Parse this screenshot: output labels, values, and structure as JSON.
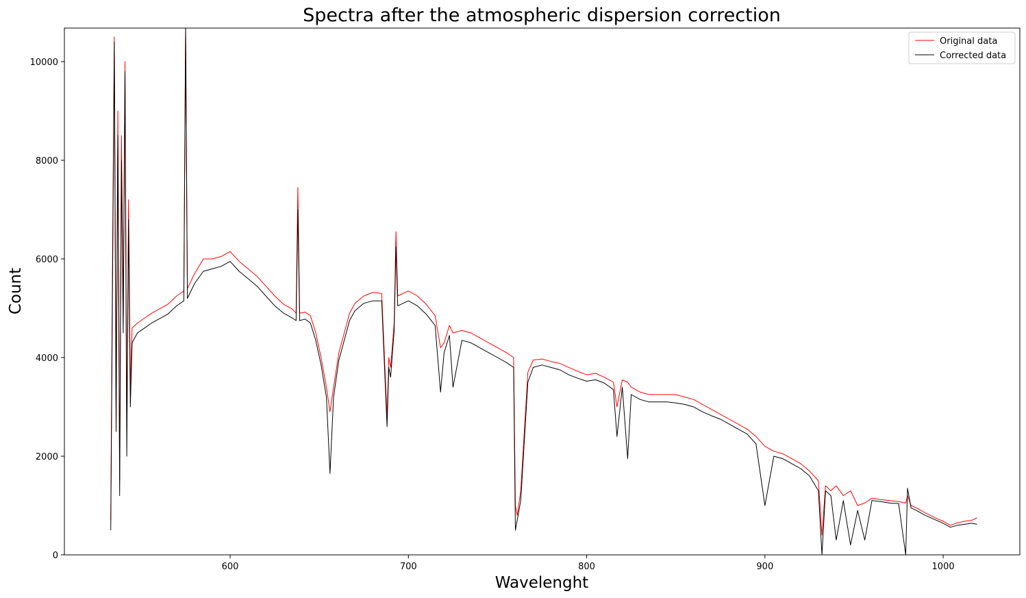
{
  "chart_data": {
    "type": "line",
    "title": "Spectra after the atmospheric dispersion correction",
    "xlabel": "Wavelenght",
    "ylabel": "Count",
    "xlim": [
      507,
      1043
    ],
    "ylim": [
      0,
      10680
    ],
    "xticks": [
      600,
      700,
      800,
      900,
      1000
    ],
    "yticks": [
      0,
      2000,
      4000,
      6000,
      8000,
      10000
    ],
    "grid": false,
    "legend_position": "top-right",
    "series": [
      {
        "name": "Original data",
        "color": "#ff0000",
        "points": [
          [
            533,
            700
          ],
          [
            534,
            6000
          ],
          [
            535,
            10500
          ],
          [
            536,
            3000
          ],
          [
            537,
            9000
          ],
          [
            538,
            1500
          ],
          [
            539,
            8500
          ],
          [
            540,
            5000
          ],
          [
            541,
            10000
          ],
          [
            542,
            2500
          ],
          [
            543,
            7200
          ],
          [
            544,
            3400
          ],
          [
            545,
            4600
          ],
          [
            548,
            4700
          ],
          [
            552,
            4800
          ],
          [
            556,
            4900
          ],
          [
            560,
            4980
          ],
          [
            565,
            5080
          ],
          [
            570,
            5250
          ],
          [
            574,
            5350
          ],
          [
            575,
            10700
          ],
          [
            576,
            5400
          ],
          [
            580,
            5700
          ],
          [
            585,
            6000
          ],
          [
            590,
            6000
          ],
          [
            595,
            6050
          ],
          [
            600,
            6150
          ],
          [
            605,
            5950
          ],
          [
            610,
            5800
          ],
          [
            615,
            5650
          ],
          [
            620,
            5450
          ],
          [
            625,
            5250
          ],
          [
            630,
            5080
          ],
          [
            635,
            4980
          ],
          [
            637,
            4900
          ],
          [
            638,
            7450
          ],
          [
            639,
            4900
          ],
          [
            642,
            4920
          ],
          [
            645,
            4850
          ],
          [
            648,
            4500
          ],
          [
            651,
            4000
          ],
          [
            654,
            3400
          ],
          [
            656,
            2900
          ],
          [
            658,
            3400
          ],
          [
            661,
            4100
          ],
          [
            664,
            4500
          ],
          [
            667,
            4900
          ],
          [
            670,
            5100
          ],
          [
            675,
            5250
          ],
          [
            680,
            5320
          ],
          [
            685,
            5300
          ],
          [
            688,
            2800
          ],
          [
            689,
            4000
          ],
          [
            690,
            3800
          ],
          [
            692,
            4700
          ],
          [
            693,
            6550
          ],
          [
            694,
            5250
          ],
          [
            700,
            5350
          ],
          [
            705,
            5250
          ],
          [
            710,
            5080
          ],
          [
            715,
            4850
          ],
          [
            718,
            4200
          ],
          [
            720,
            4300
          ],
          [
            723,
            4650
          ],
          [
            725,
            4500
          ],
          [
            730,
            4550
          ],
          [
            735,
            4500
          ],
          [
            740,
            4400
          ],
          [
            745,
            4300
          ],
          [
            750,
            4200
          ],
          [
            755,
            4100
          ],
          [
            759,
            4000
          ],
          [
            760,
            1000
          ],
          [
            761,
            800
          ],
          [
            763,
            1300
          ],
          [
            765,
            2500
          ],
          [
            767,
            3700
          ],
          [
            770,
            3950
          ],
          [
            775,
            3970
          ],
          [
            780,
            3920
          ],
          [
            785,
            3880
          ],
          [
            790,
            3800
          ],
          [
            795,
            3720
          ],
          [
            800,
            3650
          ],
          [
            805,
            3680
          ],
          [
            810,
            3600
          ],
          [
            815,
            3500
          ],
          [
            817,
            3000
          ],
          [
            820,
            3550
          ],
          [
            823,
            3500
          ],
          [
            825,
            3400
          ],
          [
            830,
            3300
          ],
          [
            835,
            3250
          ],
          [
            840,
            3250
          ],
          [
            845,
            3250
          ],
          [
            850,
            3250
          ],
          [
            855,
            3200
          ],
          [
            860,
            3150
          ],
          [
            865,
            3050
          ],
          [
            870,
            2950
          ],
          [
            875,
            2850
          ],
          [
            880,
            2750
          ],
          [
            885,
            2650
          ],
          [
            890,
            2550
          ],
          [
            895,
            2400
          ],
          [
            900,
            2200
          ],
          [
            905,
            2100
          ],
          [
            910,
            2050
          ],
          [
            915,
            1950
          ],
          [
            920,
            1850
          ],
          [
            925,
            1700
          ],
          [
            930,
            1500
          ],
          [
            932,
            400
          ],
          [
            934,
            1400
          ],
          [
            937,
            1300
          ],
          [
            940,
            1400
          ],
          [
            944,
            1200
          ],
          [
            948,
            1300
          ],
          [
            952,
            1000
          ],
          [
            956,
            1050
          ],
          [
            960,
            1150
          ],
          [
            965,
            1120
          ],
          [
            970,
            1100
          ],
          [
            975,
            1080
          ],
          [
            979,
            1050
          ],
          [
            980,
            1200
          ],
          [
            982,
            1000
          ],
          [
            985,
            950
          ],
          [
            990,
            850
          ],
          [
            995,
            760
          ],
          [
            1000,
            680
          ],
          [
            1004,
            600
          ],
          [
            1008,
            650
          ],
          [
            1012,
            680
          ],
          [
            1016,
            700
          ],
          [
            1019,
            750
          ]
        ]
      },
      {
        "name": "Corrected data",
        "color": "#000000",
        "points": [
          [
            533,
            500
          ],
          [
            534,
            5500
          ],
          [
            535,
            10400
          ],
          [
            536,
            2500
          ],
          [
            537,
            8500
          ],
          [
            538,
            1200
          ],
          [
            539,
            8000
          ],
          [
            540,
            4500
          ],
          [
            541,
            9800
          ],
          [
            542,
            2000
          ],
          [
            543,
            6800
          ],
          [
            544,
            3000
          ],
          [
            545,
            4300
          ],
          [
            548,
            4500
          ],
          [
            552,
            4600
          ],
          [
            556,
            4700
          ],
          [
            560,
            4780
          ],
          [
            565,
            4880
          ],
          [
            570,
            5050
          ],
          [
            574,
            5150
          ],
          [
            575,
            10680
          ],
          [
            576,
            5200
          ],
          [
            580,
            5500
          ],
          [
            585,
            5750
          ],
          [
            590,
            5800
          ],
          [
            595,
            5850
          ],
          [
            600,
            5950
          ],
          [
            605,
            5750
          ],
          [
            610,
            5600
          ],
          [
            615,
            5450
          ],
          [
            620,
            5250
          ],
          [
            625,
            5050
          ],
          [
            630,
            4900
          ],
          [
            635,
            4800
          ],
          [
            637,
            4750
          ],
          [
            638,
            7000
          ],
          [
            639,
            4750
          ],
          [
            642,
            4780
          ],
          [
            645,
            4700
          ],
          [
            648,
            4350
          ],
          [
            651,
            3850
          ],
          [
            654,
            3200
          ],
          [
            656,
            1650
          ],
          [
            658,
            3200
          ],
          [
            661,
            3950
          ],
          [
            664,
            4350
          ],
          [
            667,
            4750
          ],
          [
            670,
            4950
          ],
          [
            675,
            5100
          ],
          [
            680,
            5150
          ],
          [
            685,
            5150
          ],
          [
            688,
            2600
          ],
          [
            689,
            3800
          ],
          [
            690,
            3600
          ],
          [
            692,
            4550
          ],
          [
            693,
            6250
          ],
          [
            694,
            5050
          ],
          [
            700,
            5150
          ],
          [
            705,
            5050
          ],
          [
            710,
            4880
          ],
          [
            715,
            4650
          ],
          [
            718,
            3300
          ],
          [
            720,
            4100
          ],
          [
            723,
            4450
          ],
          [
            725,
            3400
          ],
          [
            730,
            4350
          ],
          [
            735,
            4300
          ],
          [
            740,
            4200
          ],
          [
            745,
            4100
          ],
          [
            750,
            4000
          ],
          [
            755,
            3900
          ],
          [
            759,
            3800
          ],
          [
            760,
            500
          ],
          [
            761,
            700
          ],
          [
            763,
            1100
          ],
          [
            765,
            2300
          ],
          [
            767,
            3500
          ],
          [
            770,
            3800
          ],
          [
            775,
            3850
          ],
          [
            780,
            3800
          ],
          [
            785,
            3750
          ],
          [
            790,
            3650
          ],
          [
            795,
            3580
          ],
          [
            800,
            3520
          ],
          [
            805,
            3550
          ],
          [
            810,
            3480
          ],
          [
            815,
            3350
          ],
          [
            817,
            2400
          ],
          [
            820,
            3400
          ],
          [
            823,
            1950
          ],
          [
            825,
            3250
          ],
          [
            830,
            3150
          ],
          [
            835,
            3100
          ],
          [
            840,
            3100
          ],
          [
            845,
            3100
          ],
          [
            850,
            3080
          ],
          [
            855,
            3050
          ],
          [
            860,
            3000
          ],
          [
            865,
            2900
          ],
          [
            870,
            2820
          ],
          [
            875,
            2750
          ],
          [
            880,
            2650
          ],
          [
            885,
            2550
          ],
          [
            890,
            2450
          ],
          [
            895,
            2250
          ],
          [
            900,
            1000
          ],
          [
            905,
            2000
          ],
          [
            910,
            1950
          ],
          [
            915,
            1850
          ],
          [
            920,
            1750
          ],
          [
            925,
            1600
          ],
          [
            930,
            1300
          ],
          [
            932,
            0
          ],
          [
            934,
            1300
          ],
          [
            937,
            1200
          ],
          [
            940,
            300
          ],
          [
            944,
            1100
          ],
          [
            948,
            200
          ],
          [
            952,
            900
          ],
          [
            956,
            300
          ],
          [
            960,
            1100
          ],
          [
            965,
            1080
          ],
          [
            970,
            1050
          ],
          [
            975,
            1040
          ],
          [
            979,
            0
          ],
          [
            980,
            1350
          ],
          [
            982,
            950
          ],
          [
            985,
            900
          ],
          [
            990,
            800
          ],
          [
            995,
            720
          ],
          [
            1000,
            640
          ],
          [
            1004,
            560
          ],
          [
            1008,
            600
          ],
          [
            1012,
            620
          ],
          [
            1016,
            640
          ],
          [
            1019,
            620
          ]
        ]
      }
    ]
  }
}
